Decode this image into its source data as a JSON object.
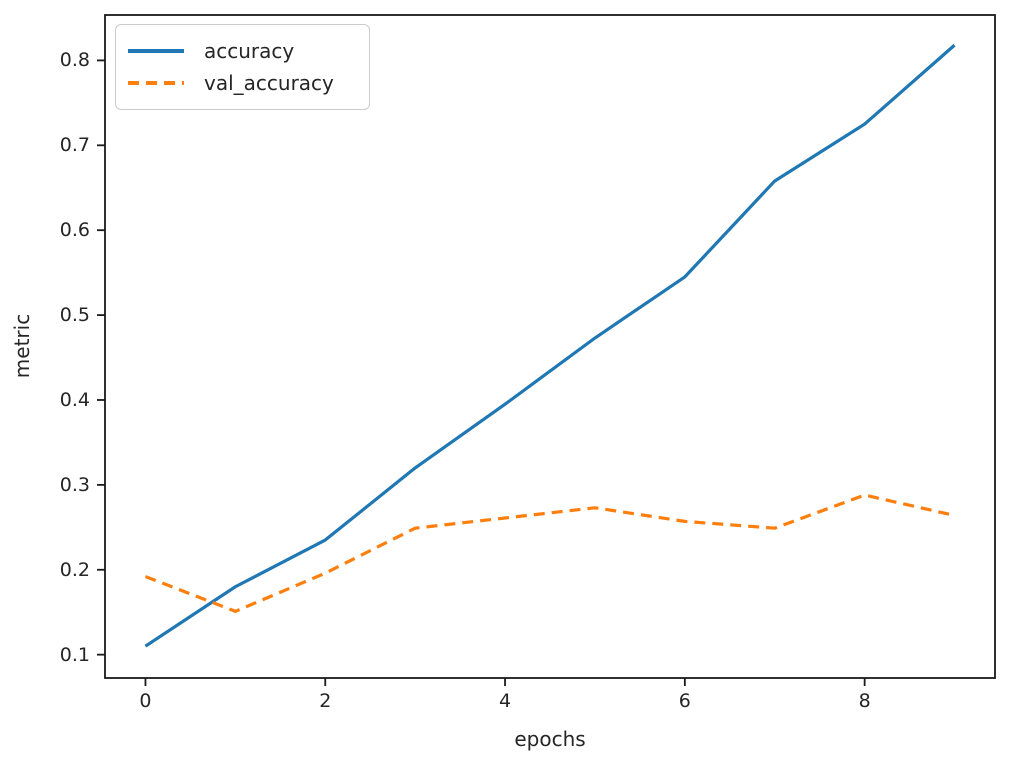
{
  "chart_data": {
    "type": "line",
    "title": "",
    "xlabel": "epochs",
    "ylabel": "metric",
    "x": [
      0,
      1,
      2,
      3,
      4,
      5,
      6,
      7,
      8,
      9
    ],
    "series": [
      {
        "name": "accuracy",
        "color": "#1f77b4",
        "style": "solid",
        "values": [
          0.11,
          0.18,
          0.235,
          0.32,
          0.395,
          0.473,
          0.545,
          0.658,
          0.725,
          0.818
        ]
      },
      {
        "name": "val_accuracy",
        "color": "#ff7f0e",
        "style": "dashed",
        "values": [
          0.192,
          0.151,
          0.196,
          0.249,
          0.261,
          0.273,
          0.257,
          0.249,
          0.288,
          0.264
        ]
      }
    ],
    "xlim": [
      -0.45,
      9.45
    ],
    "ylim": [
      0.0725,
      0.8535
    ],
    "x_ticks": [
      0,
      2,
      4,
      6,
      8
    ],
    "y_ticks": [
      0.1,
      0.2,
      0.3,
      0.4,
      0.5,
      0.6,
      0.7,
      0.8
    ],
    "y_tick_decimals": 1,
    "grid": false,
    "legend_position": "upper-left",
    "spine_color": "#1a1a1a",
    "tick_color": "#262626"
  }
}
